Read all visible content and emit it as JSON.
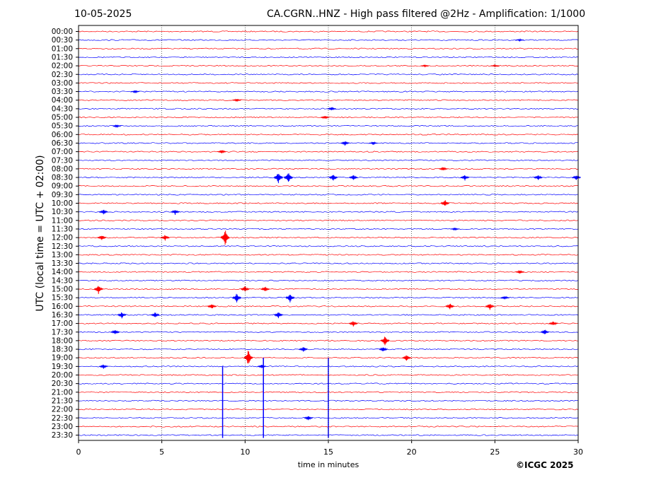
{
  "header": {
    "date": "10-05-2025",
    "title": "CA.CGRN..HNZ - High pass filtered @2Hz - Amplification: 1/1000"
  },
  "footer": {
    "copyright": "©ICGC 2025"
  },
  "colors": {
    "odd_trace": "#ff0000",
    "even_trace": "#0000ff",
    "grid": "#000000"
  },
  "chart_data": {
    "type": "line",
    "title": "CA.CGRN..HNZ - High pass filtered @2Hz - Amplification: 1/1000",
    "xlabel": "time in minutes",
    "ylabel": "UTC (local time = UTC + 02:00)",
    "xlim": [
      0,
      30
    ],
    "x_ticks": [
      0,
      5,
      10,
      15,
      20,
      25,
      30
    ],
    "vertical_gridlines": [
      5,
      10,
      15,
      20,
      25
    ],
    "grid": "dotted vertical",
    "trace_colors": [
      "#ff0000",
      "#0000ff"
    ],
    "rows": [
      "00:00",
      "00:30",
      "01:00",
      "01:30",
      "02:00",
      "02:30",
      "03:00",
      "03:30",
      "04:00",
      "04:30",
      "05:00",
      "05:30",
      "06:00",
      "06:30",
      "07:00",
      "07:30",
      "08:00",
      "08:30",
      "09:00",
      "09:30",
      "10:00",
      "10:30",
      "11:00",
      "11:30",
      "12:00",
      "12:30",
      "13:00",
      "13:30",
      "14:00",
      "14:30",
      "15:00",
      "15:30",
      "16:00",
      "16:30",
      "17:00",
      "17:30",
      "18:00",
      "18:30",
      "19:00",
      "19:30",
      "20:00",
      "20:30",
      "21:00",
      "21:30",
      "22:00",
      "22:30",
      "23:00",
      "23:30"
    ],
    "events": [
      {
        "row": "00:30",
        "minute": 26.5,
        "amp": 0.2
      },
      {
        "row": "02:00",
        "minute": 20.8,
        "amp": 0.2
      },
      {
        "row": "02:00",
        "minute": 25.0,
        "amp": 0.2
      },
      {
        "row": "03:30",
        "minute": 3.4,
        "amp": 0.3
      },
      {
        "row": "04:00",
        "minute": 9.5,
        "amp": 0.3
      },
      {
        "row": "04:30",
        "minute": 15.2,
        "amp": 0.4
      },
      {
        "row": "05:00",
        "minute": 14.8,
        "amp": 0.4
      },
      {
        "row": "05:30",
        "minute": 2.3,
        "amp": 0.3
      },
      {
        "row": "06:30",
        "minute": 16.0,
        "amp": 0.5
      },
      {
        "row": "06:30",
        "minute": 17.7,
        "amp": 0.3
      },
      {
        "row": "07:00",
        "minute": 8.6,
        "amp": 0.4
      },
      {
        "row": "08:00",
        "minute": 21.9,
        "amp": 0.4
      },
      {
        "row": "08:30",
        "minute": 12.0,
        "amp": 1.3
      },
      {
        "row": "08:30",
        "minute": 12.6,
        "amp": 1.3
      },
      {
        "row": "08:30",
        "minute": 15.3,
        "amp": 0.8
      },
      {
        "row": "08:30",
        "minute": 16.5,
        "amp": 0.6
      },
      {
        "row": "08:30",
        "minute": 23.2,
        "amp": 0.6
      },
      {
        "row": "08:30",
        "minute": 27.6,
        "amp": 0.6
      },
      {
        "row": "08:30",
        "minute": 29.9,
        "amp": 0.6
      },
      {
        "row": "10:00",
        "minute": 22.0,
        "amp": 0.8
      },
      {
        "row": "10:30",
        "minute": 1.5,
        "amp": 0.6
      },
      {
        "row": "10:30",
        "minute": 5.8,
        "amp": 0.6
      },
      {
        "row": "11:30",
        "minute": 22.6,
        "amp": 0.3
      },
      {
        "row": "12:00",
        "minute": 1.4,
        "amp": 0.6
      },
      {
        "row": "12:00",
        "minute": 5.2,
        "amp": 0.6
      },
      {
        "row": "12:00",
        "minute": 8.8,
        "amp": 1.8
      },
      {
        "row": "14:00",
        "minute": 26.5,
        "amp": 0.4
      },
      {
        "row": "15:00",
        "minute": 1.2,
        "amp": 1.0
      },
      {
        "row": "15:00",
        "minute": 10.0,
        "amp": 0.7
      },
      {
        "row": "15:00",
        "minute": 11.2,
        "amp": 0.6
      },
      {
        "row": "15:30",
        "minute": 9.5,
        "amp": 1.0
      },
      {
        "row": "15:30",
        "minute": 12.7,
        "amp": 1.0
      },
      {
        "row": "15:30",
        "minute": 25.6,
        "amp": 0.4
      },
      {
        "row": "16:00",
        "minute": 8.0,
        "amp": 0.6
      },
      {
        "row": "16:00",
        "minute": 22.3,
        "amp": 0.7
      },
      {
        "row": "16:00",
        "minute": 24.7,
        "amp": 0.7
      },
      {
        "row": "16:30",
        "minute": 2.6,
        "amp": 0.7
      },
      {
        "row": "16:30",
        "minute": 4.6,
        "amp": 0.6
      },
      {
        "row": "16:30",
        "minute": 12.0,
        "amp": 0.7
      },
      {
        "row": "17:00",
        "minute": 16.5,
        "amp": 0.6
      },
      {
        "row": "17:00",
        "minute": 28.5,
        "amp": 0.5
      },
      {
        "row": "17:30",
        "minute": 2.2,
        "amp": 0.6
      },
      {
        "row": "17:30",
        "minute": 28.0,
        "amp": 0.6
      },
      {
        "row": "18:00",
        "minute": 18.4,
        "amp": 1.0
      },
      {
        "row": "18:30",
        "minute": 13.5,
        "amp": 0.6
      },
      {
        "row": "18:30",
        "minute": 18.3,
        "amp": 0.6
      },
      {
        "row": "19:00",
        "minute": 10.2,
        "amp": 1.8
      },
      {
        "row": "19:00",
        "minute": 19.7,
        "amp": 0.7
      },
      {
        "row": "19:30",
        "minute": 1.5,
        "amp": 0.5
      },
      {
        "row": "19:30",
        "minute": 11.0,
        "amp": 0.4
      },
      {
        "row": "22:30",
        "minute": 13.8,
        "amp": 0.5
      }
    ],
    "spikes": [
      {
        "minute": 8.65,
        "from_row": "19:30",
        "to_row": "23:30"
      },
      {
        "minute": 11.1,
        "from_row": "19:00",
        "to_row": "23:30"
      },
      {
        "minute": 15.0,
        "from_row": "19:00",
        "to_row": "23:30"
      }
    ]
  }
}
